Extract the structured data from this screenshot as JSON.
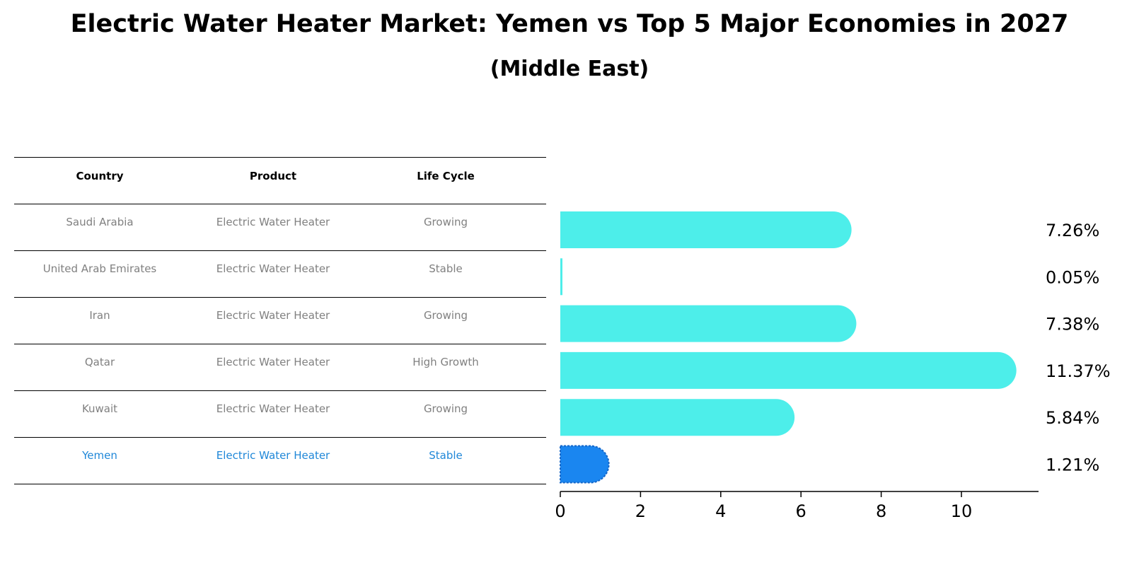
{
  "title": "Electric Water Heater Market: Yemen vs Top 5 Major Economies in 2027",
  "subtitle": "(Middle East)",
  "table": {
    "headers": [
      "Country",
      "Product",
      "Life Cycle"
    ],
    "rows": [
      [
        "Saudi Arabia",
        "Electric Water Heater",
        "Growing"
      ],
      [
        "United Arab Emirates",
        "Electric Water Heater",
        "Stable"
      ],
      [
        "Iran",
        "Electric Water Heater",
        "Growing"
      ],
      [
        "Qatar",
        "Electric Water Heater",
        "High Growth"
      ],
      [
        "Kuwait",
        "Electric Water Heater",
        "Growing"
      ],
      [
        "Yemen",
        "Electric Water Heater",
        "Stable"
      ]
    ],
    "highlight_row": 5
  },
  "colors": {
    "bar": "#4deeea",
    "highlight_bar": "#1a86f0",
    "highlight_text": "#1f87d8",
    "muted_text": "#808080"
  },
  "chart_data": {
    "type": "bar",
    "orientation": "horizontal",
    "categories": [
      "Saudi Arabia",
      "United Arab Emirates",
      "Iran",
      "Qatar",
      "Kuwait",
      "Yemen"
    ],
    "values": [
      7.26,
      0.05,
      7.38,
      11.37,
      5.84,
      1.21
    ],
    "value_labels": [
      "7.26%",
      "0.05%",
      "7.38%",
      "11.37%",
      "5.84%",
      "1.21%"
    ],
    "highlight_index": 5,
    "xlim": [
      0,
      12
    ],
    "xticks": [
      0,
      2,
      4,
      6,
      8,
      10
    ],
    "xlabel": "",
    "ylabel": "",
    "grid": false
  }
}
